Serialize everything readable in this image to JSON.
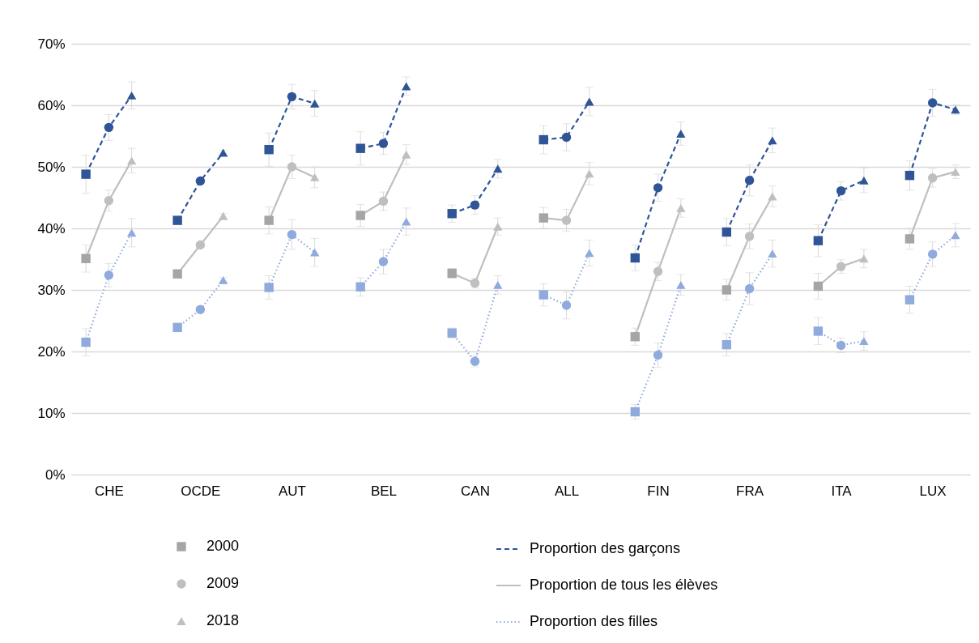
{
  "chart_data": {
    "type": "line",
    "categories": [
      null,
      "CHE",
      null,
      null,
      null,
      "OCDE",
      null,
      null,
      null,
      "AUT",
      null,
      null,
      null,
      "BEL",
      null,
      null,
      null,
      "CAN",
      null,
      null,
      null,
      "ALL",
      null,
      null,
      null,
      "FIN",
      null,
      null,
      null,
      "FRA",
      null,
      null,
      null,
      "ITA",
      null,
      null,
      null,
      "LUX",
      null
    ],
    "ylim": [
      0,
      70
    ],
    "yticks": [
      {
        "value": 0,
        "label": "0%"
      },
      {
        "value": 10,
        "label": "10%"
      },
      {
        "value": 20,
        "label": "20%"
      },
      {
        "value": 30,
        "label": "30%"
      },
      {
        "value": 40,
        "label": "40%"
      },
      {
        "value": 50,
        "label": "50%"
      },
      {
        "value": 60,
        "label": "60%"
      },
      {
        "value": 70,
        "label": "70%"
      }
    ],
    "grid": "y",
    "legend": "bottom",
    "series": [
      {
        "name": "Proportion des garçons",
        "type": "line",
        "color": "#2f5597",
        "line_style": "dashed",
        "values": [
          48.8,
          56.4,
          61.6,
          null,
          41.3,
          47.7,
          52.3,
          null,
          52.8,
          61.4,
          60.3,
          null,
          53.0,
          53.8,
          63.1,
          null,
          42.4,
          43.8,
          49.7,
          null,
          54.4,
          54.8,
          60.6,
          null,
          35.2,
          46.6,
          55.4,
          null,
          39.4,
          47.8,
          54.3,
          null,
          38.0,
          46.1,
          47.8,
          null,
          48.6,
          60.4,
          59.3
        ],
        "errors": [
          3.1,
          2.1,
          2.2,
          null,
          null,
          null,
          0.4,
          null,
          2.7,
          2.0,
          2.1,
          null,
          2.7,
          1.8,
          1.5,
          null,
          1.4,
          1.5,
          1.5,
          null,
          2.3,
          2.2,
          2.3,
          null,
          2.1,
          2.2,
          1.9,
          null,
          2.2,
          2.5,
          2.0,
          null,
          2.6,
          1.5,
          2.0,
          null,
          2.4,
          2.2,
          0.8
        ]
      },
      {
        "name": "Proportion de tous les élèves",
        "type": "line",
        "color": "#bfbfbf",
        "line_style": "solid",
        "values": [
          35.1,
          44.5,
          51.0,
          null,
          32.6,
          37.3,
          42.0,
          null,
          41.3,
          50.0,
          48.3,
          null,
          42.1,
          44.4,
          52.0,
          null,
          32.7,
          31.1,
          40.3,
          null,
          41.7,
          41.3,
          48.9,
          null,
          22.4,
          33.0,
          43.3,
          null,
          30.0,
          38.7,
          45.2,
          null,
          30.6,
          33.8,
          35.1,
          null,
          38.3,
          48.2,
          49.2
        ],
        "errors": [
          2.2,
          1.7,
          2.0,
          null,
          null,
          0.4,
          0.4,
          null,
          2.2,
          1.9,
          1.7,
          null,
          1.8,
          1.5,
          1.6,
          null,
          0.8,
          0.8,
          1.4,
          null,
          1.7,
          1.8,
          1.8,
          null,
          1.4,
          1.5,
          1.5,
          null,
          1.7,
          2.0,
          1.7,
          null,
          2.1,
          1.1,
          1.5,
          null,
          1.7,
          1.5,
          1.1
        ]
      },
      {
        "name": "Proportion des filles",
        "type": "line",
        "color": "#8faadc",
        "line_style": "dotted",
        "values": [
          21.5,
          32.4,
          39.3,
          null,
          23.9,
          26.8,
          31.6,
          null,
          30.4,
          39.0,
          36.1,
          null,
          30.5,
          34.6,
          41.1,
          null,
          23.0,
          18.4,
          30.8,
          null,
          29.2,
          27.5,
          36.0,
          null,
          10.2,
          19.4,
          30.8,
          null,
          21.1,
          30.2,
          35.9,
          null,
          23.3,
          21.0,
          21.7,
          null,
          28.4,
          35.8,
          38.9
        ],
        "errors": [
          2.2,
          1.9,
          2.3,
          null,
          null,
          0.4,
          0.4,
          null,
          1.9,
          2.4,
          2.3,
          null,
          1.5,
          2.0,
          2.2,
          null,
          0.8,
          0.9,
          1.5,
          null,
          1.8,
          2.2,
          2.1,
          null,
          1.2,
          2.0,
          1.7,
          null,
          1.8,
          2.6,
          2.2,
          null,
          2.2,
          1.2,
          1.5,
          null,
          2.2,
          2.0,
          1.9
        ]
      },
      {
        "name": "2000",
        "type": "scatter",
        "marker": "square",
        "color": "#a5a5a5",
        "values": [
          35.1,
          null,
          null,
          null,
          32.6,
          null,
          null,
          null,
          41.3,
          null,
          null,
          null,
          42.1,
          null,
          null,
          null,
          32.7,
          null,
          null,
          null,
          41.7,
          null,
          null,
          null,
          22.4,
          null,
          null,
          null,
          30.0,
          null,
          null,
          null,
          30.6,
          null,
          null,
          null,
          38.3,
          null,
          null
        ]
      },
      {
        "name": "2009",
        "type": "scatter",
        "marker": "circle",
        "color": "#bfbfbf",
        "values": [
          null,
          44.5,
          null,
          null,
          null,
          37.3,
          null,
          null,
          null,
          50.0,
          null,
          null,
          null,
          44.4,
          null,
          null,
          null,
          31.1,
          null,
          null,
          null,
          41.3,
          null,
          null,
          null,
          33.0,
          null,
          null,
          null,
          38.7,
          null,
          null,
          null,
          33.8,
          null,
          null,
          null,
          48.2,
          null
        ]
      },
      {
        "name": "2018",
        "type": "scatter",
        "marker": "triangle",
        "color": "#bfbfbf",
        "values": [
          null,
          null,
          51.0,
          null,
          null,
          null,
          42.0,
          null,
          null,
          null,
          48.3,
          null,
          null,
          null,
          52.0,
          null,
          null,
          null,
          40.3,
          null,
          null,
          null,
          48.9,
          null,
          null,
          null,
          43.3,
          null,
          null,
          null,
          45.2,
          null,
          null,
          null,
          35.1,
          null,
          null,
          null,
          49.2
        ]
      },
      {
        "type": "scatter",
        "marker": "square",
        "color": "#2f5597",
        "values": [
          48.8,
          null,
          null,
          null,
          41.3,
          null,
          null,
          null,
          52.8,
          null,
          null,
          null,
          53.0,
          null,
          null,
          null,
          42.4,
          null,
          null,
          null,
          54.4,
          null,
          null,
          null,
          35.2,
          null,
          null,
          null,
          39.4,
          null,
          null,
          null,
          38.0,
          null,
          null,
          null,
          48.6,
          null,
          null
        ]
      },
      {
        "type": "scatter",
        "marker": "circle",
        "color": "#2f5597",
        "values": [
          null,
          56.4,
          null,
          null,
          null,
          47.7,
          null,
          null,
          null,
          61.4,
          null,
          null,
          null,
          53.8,
          null,
          null,
          null,
          43.8,
          null,
          null,
          null,
          54.8,
          null,
          null,
          null,
          46.6,
          null,
          null,
          null,
          47.8,
          null,
          null,
          null,
          46.1,
          null,
          null,
          null,
          60.4,
          null
        ]
      },
      {
        "type": "scatter",
        "marker": "triangle",
        "color": "#2f5597",
        "values": [
          null,
          null,
          61.6,
          null,
          null,
          null,
          52.3,
          null,
          null,
          null,
          60.3,
          null,
          null,
          null,
          63.1,
          null,
          null,
          null,
          49.7,
          null,
          null,
          null,
          60.6,
          null,
          null,
          null,
          55.4,
          null,
          null,
          null,
          54.3,
          null,
          null,
          null,
          47.8,
          null,
          null,
          null,
          59.3
        ]
      },
      {
        "type": "scatter",
        "marker": "square",
        "color": "#8faadc",
        "values": [
          21.5,
          null,
          null,
          null,
          23.9,
          null,
          null,
          null,
          30.4,
          null,
          null,
          null,
          30.5,
          null,
          null,
          null,
          23.0,
          null,
          null,
          null,
          29.2,
          null,
          null,
          null,
          10.2,
          null,
          null,
          null,
          21.1,
          null,
          null,
          null,
          23.3,
          null,
          null,
          null,
          28.4,
          null,
          null
        ]
      },
      {
        "type": "scatter",
        "marker": "circle",
        "color": "#8faadc",
        "values": [
          null,
          32.4,
          null,
          null,
          null,
          26.8,
          null,
          null,
          null,
          39.0,
          null,
          null,
          null,
          34.6,
          null,
          null,
          null,
          18.4,
          null,
          null,
          null,
          27.5,
          null,
          null,
          null,
          19.4,
          null,
          null,
          null,
          30.2,
          null,
          null,
          null,
          21.0,
          null,
          null,
          null,
          35.8,
          null
        ]
      },
      {
        "type": "scatter",
        "marker": "triangle",
        "color": "#8faadc",
        "values": [
          null,
          null,
          39.3,
          null,
          null,
          null,
          31.6,
          null,
          null,
          null,
          36.1,
          null,
          null,
          null,
          41.1,
          null,
          null,
          null,
          30.8,
          null,
          null,
          null,
          36.0,
          null,
          null,
          null,
          30.8,
          null,
          null,
          null,
          35.9,
          null,
          null,
          null,
          21.7,
          null,
          null,
          null,
          38.9
        ]
      }
    ]
  }
}
